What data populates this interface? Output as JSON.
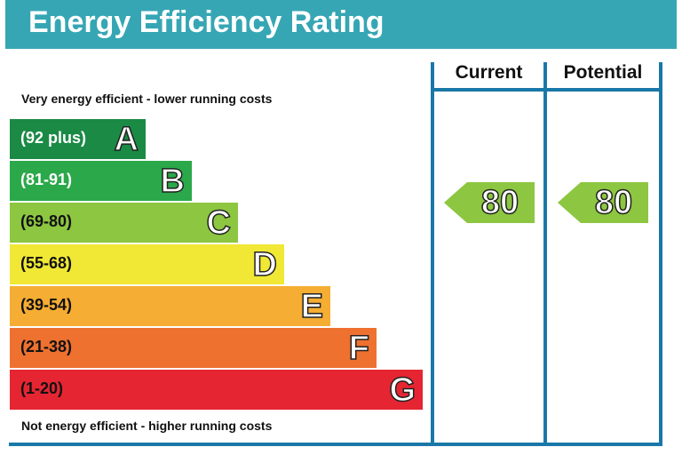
{
  "chart_data": {
    "type": "table",
    "title": "Energy Efficiency Rating",
    "top_note": "Very energy efficient - lower running costs",
    "bottom_note": "Not energy efficient - higher running costs",
    "columns": [
      "Current",
      "Potential"
    ],
    "bands": [
      {
        "letter": "A",
        "range": "(92 plus)",
        "color": "#1a8a45",
        "text_color": "#ffffff"
      },
      {
        "letter": "B",
        "range": "(81-91)",
        "color": "#2ba84a",
        "text_color": "#ffffff"
      },
      {
        "letter": "C",
        "range": "(69-80)",
        "color": "#8dc641",
        "text_color": "#111111"
      },
      {
        "letter": "D",
        "range": "(55-68)",
        "color": "#f0e834",
        "text_color": "#111111"
      },
      {
        "letter": "E",
        "range": "(39-54)",
        "color": "#f5ad33",
        "text_color": "#111111"
      },
      {
        "letter": "F",
        "range": "(21-38)",
        "color": "#ee7130",
        "text_color": "#111111"
      },
      {
        "letter": "G",
        "range": "(1-20)",
        "color": "#e62532",
        "text_color": "#111111"
      }
    ],
    "current": {
      "value": "80",
      "band": "C",
      "color": "#8dc641"
    },
    "potential": {
      "value": "80",
      "band": "C",
      "color": "#8dc641"
    }
  }
}
